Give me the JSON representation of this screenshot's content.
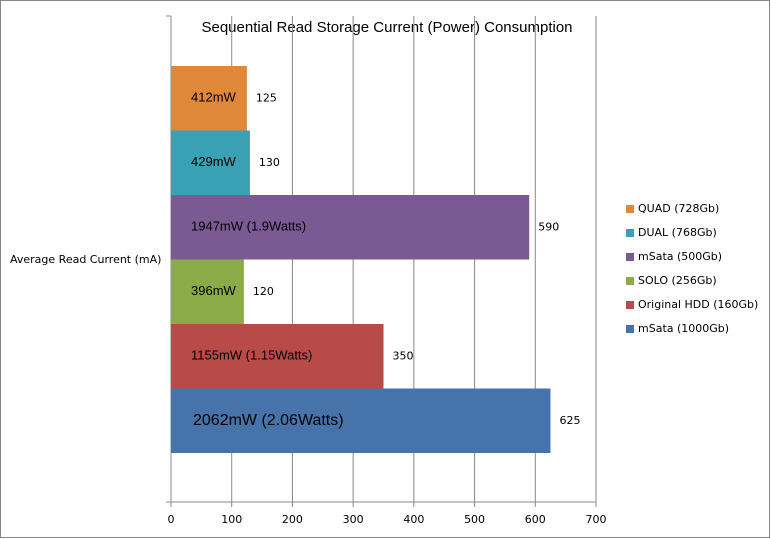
{
  "chart_data": {
    "type": "bar",
    "orientation": "horizontal",
    "title": "Sequential Read Storage Current (Power) Consumption",
    "categories": [
      "Average Read Current (mA)"
    ],
    "series": [
      {
        "name": "QUAD (728Gb)",
        "color": "#e0883a",
        "values": [
          125
        ],
        "annotation": "412mW"
      },
      {
        "name": "DUAL (768Gb)",
        "color": "#3aa0b4",
        "values": [
          130
        ],
        "annotation": "429mW"
      },
      {
        "name": "mSata (500Gb)",
        "color": "#7b5a93",
        "values": [
          590
        ],
        "annotation": "1947mW (1.9Watts)"
      },
      {
        "name": "SOLO (256Gb)",
        "color": "#8aab47",
        "values": [
          120
        ],
        "annotation": "396mW"
      },
      {
        "name": "Original HDD (160Gb)",
        "color": "#b84a48",
        "values": [
          350
        ],
        "annotation": "1155mW (1.15Watts)"
      },
      {
        "name": "mSata (1000Gb)",
        "color": "#4673a9",
        "values": [
          625
        ],
        "annotation": "2062mW (2.06Watts)"
      }
    ],
    "xlim": [
      0,
      700
    ],
    "xticks": [
      0,
      100,
      200,
      300,
      400,
      500,
      600,
      700
    ],
    "grid": true,
    "legend": "right"
  }
}
